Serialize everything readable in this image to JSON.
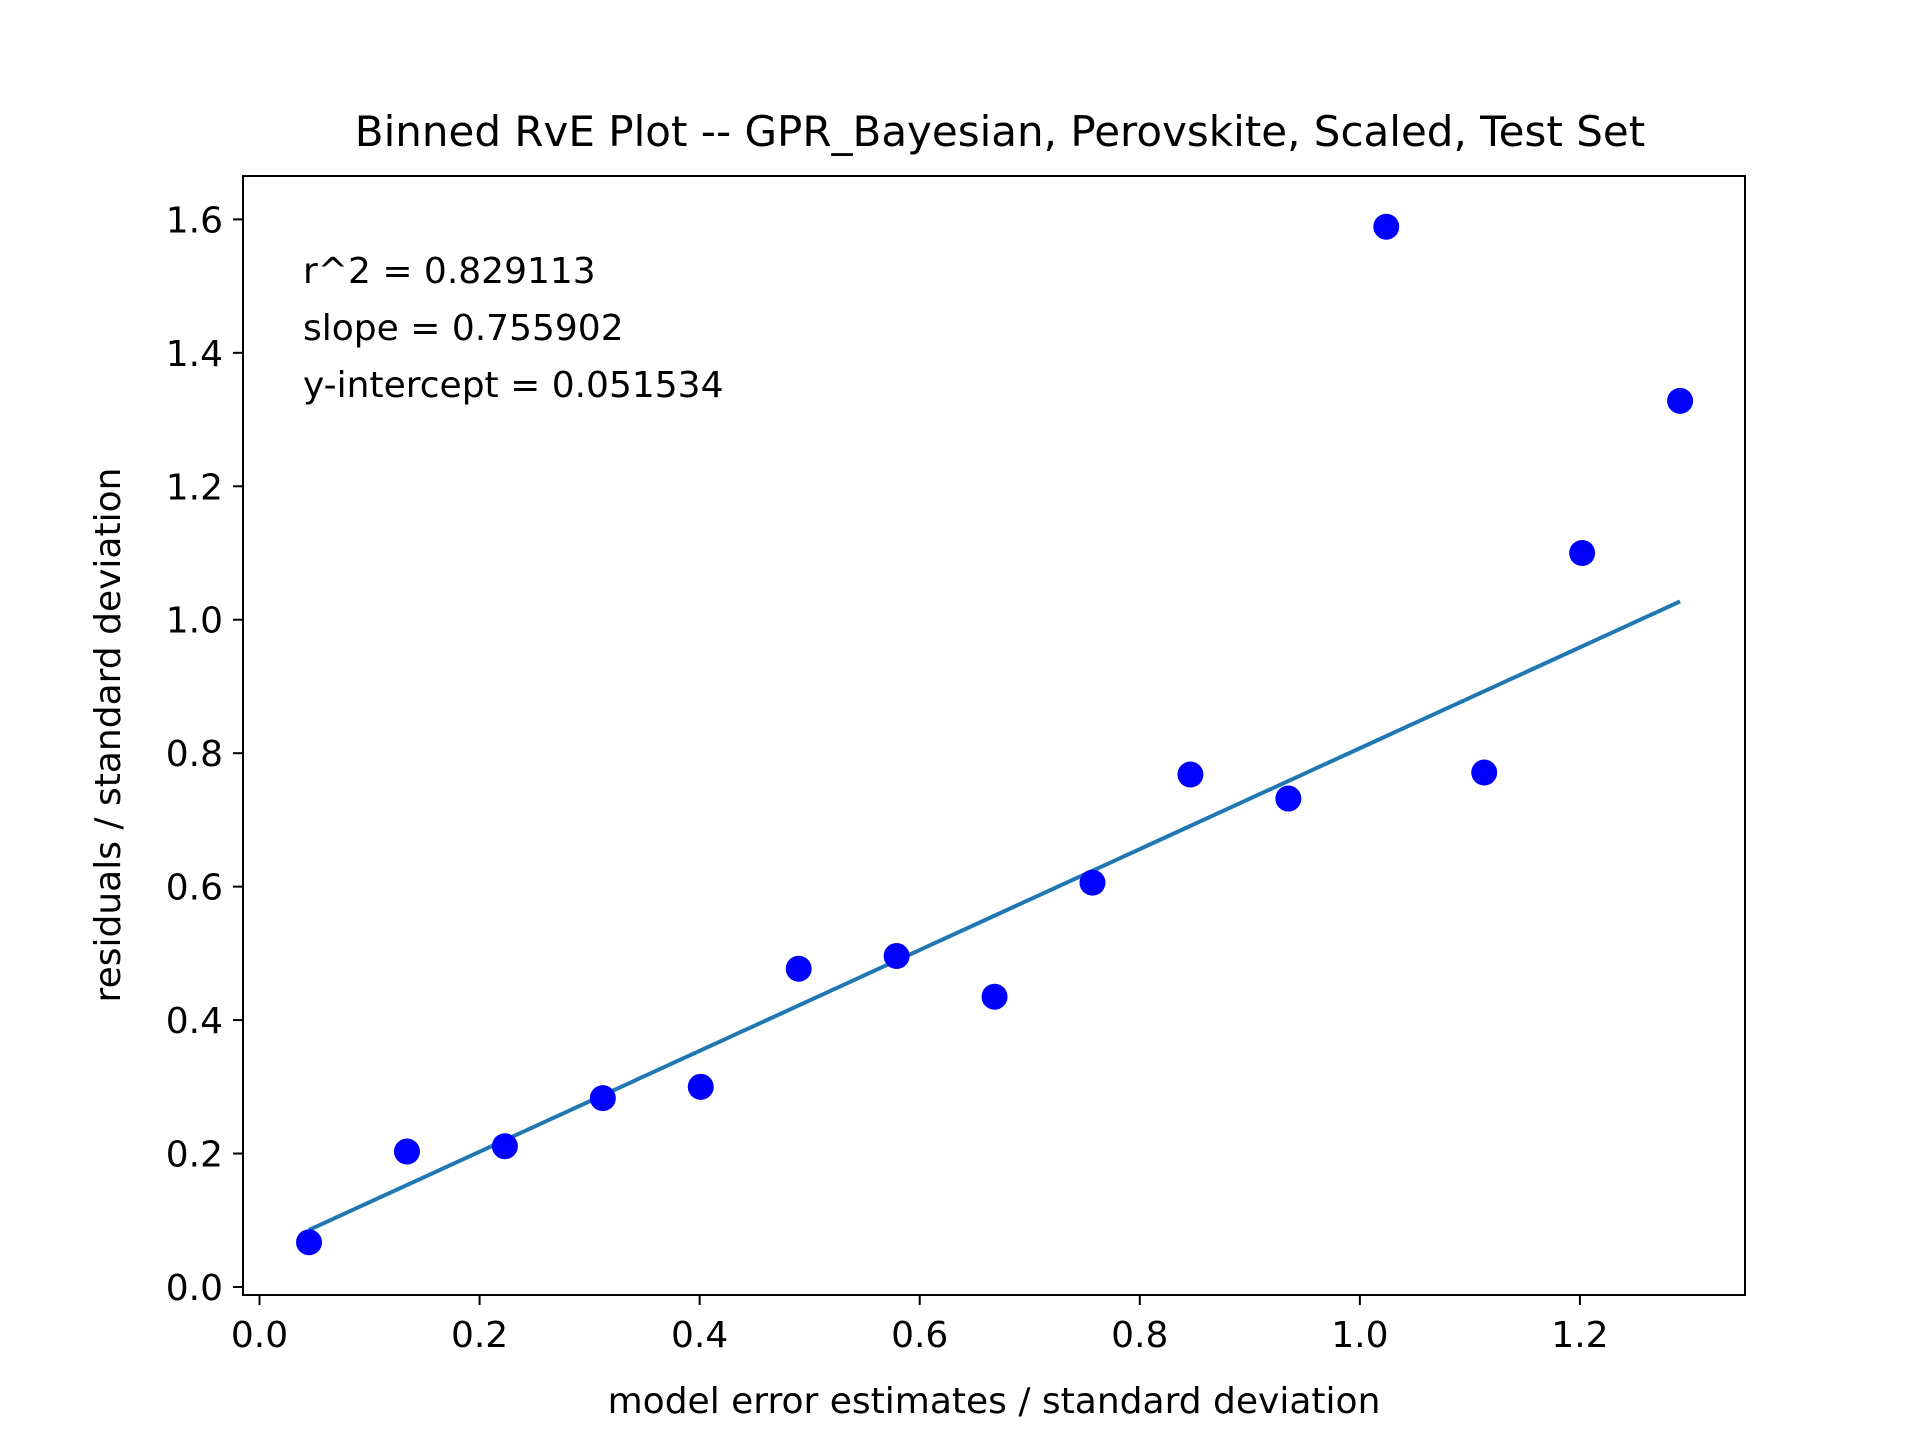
{
  "chart_data": {
    "type": "scatter",
    "title": "Binned RvE Plot -- GPR_Bayesian, Perovskite, Scaled, Test Set",
    "xlabel": "model error estimates / standard deviation",
    "ylabel": "residuals / standard deviation",
    "xlim": [
      -0.015,
      1.35
    ],
    "ylim": [
      -0.012,
      1.665
    ],
    "xticks": [
      0.0,
      0.2,
      0.4,
      0.6,
      0.8,
      1.0,
      1.2
    ],
    "xtick_labels": [
      "0.0",
      "0.2",
      "0.4",
      "0.6",
      "0.8",
      "1.0",
      "1.2"
    ],
    "yticks": [
      0.0,
      0.2,
      0.4,
      0.6,
      0.8,
      1.0,
      1.2,
      1.4,
      1.6
    ],
    "ytick_labels": [
      "0.0",
      "0.2",
      "0.4",
      "0.6",
      "0.8",
      "1.0",
      "1.2",
      "1.4",
      "1.6"
    ],
    "grid": false,
    "annotations": [
      "r^2 = 0.829113",
      "slope = 0.755902",
      "y-intercept = 0.051534"
    ],
    "points": {
      "color": "#0000ff",
      "x": [
        0.045,
        0.134,
        0.223,
        0.312,
        0.401,
        0.49,
        0.579,
        0.668,
        0.757,
        0.846,
        0.935,
        1.024,
        1.113,
        1.202,
        1.291
      ],
      "y": [
        0.067,
        0.203,
        0.211,
        0.283,
        0.3,
        0.477,
        0.496,
        0.435,
        0.606,
        0.768,
        0.732,
        1.589,
        0.771,
        1.1,
        1.328
      ]
    },
    "fit_line": {
      "color": "#1f77b4",
      "slope": 0.755902,
      "intercept": 0.051534,
      "x_range": [
        0.045,
        1.291
      ]
    }
  }
}
